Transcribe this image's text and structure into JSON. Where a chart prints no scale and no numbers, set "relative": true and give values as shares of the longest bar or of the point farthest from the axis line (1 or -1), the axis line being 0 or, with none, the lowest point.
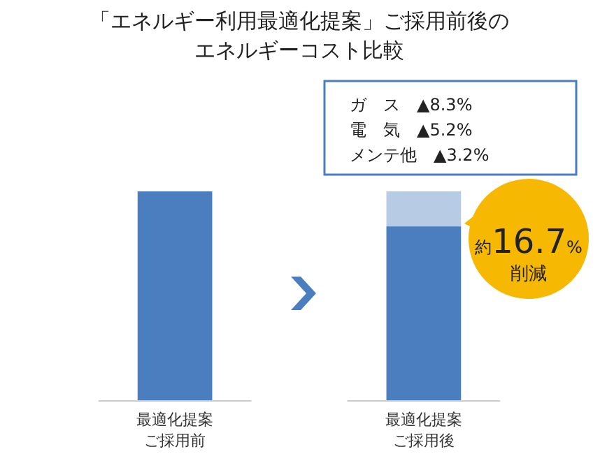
{
  "chart_data": {
    "type": "bar",
    "title": "「エネルギー利用最適化提案」ご採用前後のエネルギーコスト比較",
    "categories": [
      "最適化提案ご採用前",
      "最適化提案ご採用後"
    ],
    "stacked": true,
    "relative": true,
    "series": [
      {
        "color": "#4a7ebf",
        "values": [
          1,
          0.833
        ]
      },
      {
        "color": "#b7cce4",
        "values": [
          null,
          0.167
        ]
      }
    ],
    "annotations": [
      "ガ　ス　▲8.3%",
      "電　気　▲5.2%",
      "メンテ他　▲3.2%",
      "約16.7%削減"
    ]
  }
}
